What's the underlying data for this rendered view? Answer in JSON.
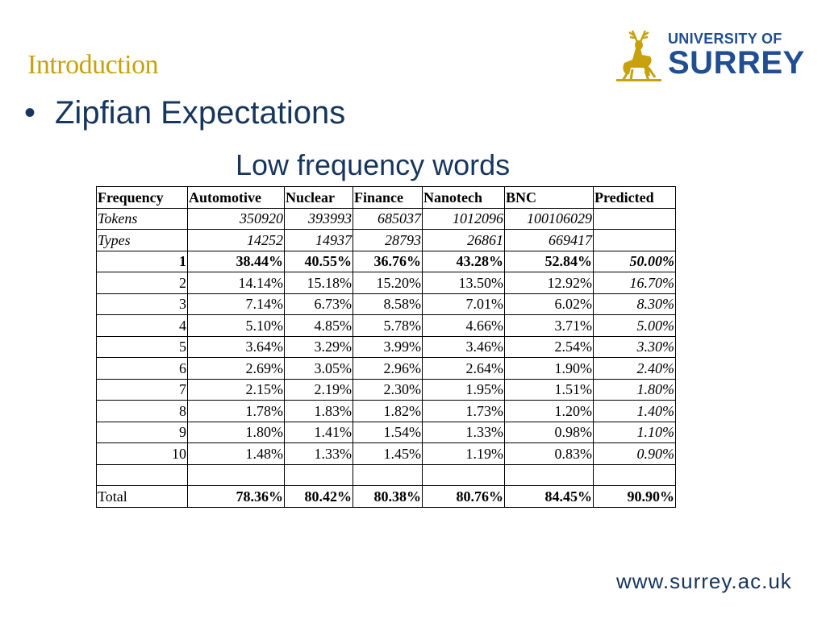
{
  "slide": {
    "title": "Introduction",
    "bullet": "Zipfian Expectations",
    "subtitle": "Low frequency words",
    "footer_url": "www.surrey.ac.uk"
  },
  "logo": {
    "line1": "UNIVERSITY OF",
    "line2": "SURREY",
    "emblem": "stag-icon",
    "color_text": "#1F4E92",
    "color_emblem": "#C8A20D"
  },
  "table": {
    "headers": [
      "Frequency",
      "Automotive",
      "Nuclear",
      "Finance",
      "Nanotech",
      "BNC",
      "Predicted"
    ],
    "tokens": {
      "label": "Tokens",
      "values": [
        "350920",
        "393993",
        "685037",
        "1012096",
        "100106029",
        ""
      ]
    },
    "types": {
      "label": "Types",
      "values": [
        "14252",
        "14937",
        "28793",
        "26861",
        "669417",
        ""
      ]
    },
    "rows": [
      {
        "freq": "1",
        "values": [
          "38.44%",
          "40.55%",
          "36.76%",
          "43.28%",
          "52.84%"
        ],
        "predicted": "50.00%"
      },
      {
        "freq": "2",
        "values": [
          "14.14%",
          "15.18%",
          "15.20%",
          "13.50%",
          "12.92%"
        ],
        "predicted": "16.70%"
      },
      {
        "freq": "3",
        "values": [
          "7.14%",
          "6.73%",
          "8.58%",
          "7.01%",
          "6.02%"
        ],
        "predicted": "8.30%"
      },
      {
        "freq": "4",
        "values": [
          "5.10%",
          "4.85%",
          "5.78%",
          "4.66%",
          "3.71%"
        ],
        "predicted": "5.00%"
      },
      {
        "freq": "5",
        "values": [
          "3.64%",
          "3.29%",
          "3.99%",
          "3.46%",
          "2.54%"
        ],
        "predicted": "3.30%"
      },
      {
        "freq": "6",
        "values": [
          "2.69%",
          "3.05%",
          "2.96%",
          "2.64%",
          "1.90%"
        ],
        "predicted": "2.40%"
      },
      {
        "freq": "7",
        "values": [
          "2.15%",
          "2.19%",
          "2.30%",
          "1.95%",
          "1.51%"
        ],
        "predicted": "1.80%"
      },
      {
        "freq": "8",
        "values": [
          "1.78%",
          "1.83%",
          "1.82%",
          "1.73%",
          "1.20%"
        ],
        "predicted": "1.40%"
      },
      {
        "freq": "9",
        "values": [
          "1.80%",
          "1.41%",
          "1.54%",
          "1.33%",
          "0.98%"
        ],
        "predicted": "1.10%"
      },
      {
        "freq": "10",
        "values": [
          "1.48%",
          "1.33%",
          "1.45%",
          "1.19%",
          "0.83%"
        ],
        "predicted": "0.90%"
      }
    ],
    "total": {
      "label": "Total",
      "values": [
        "78.36%",
        "80.42%",
        "80.38%",
        "80.76%",
        "84.45%"
      ],
      "predicted": "90.90%"
    }
  }
}
